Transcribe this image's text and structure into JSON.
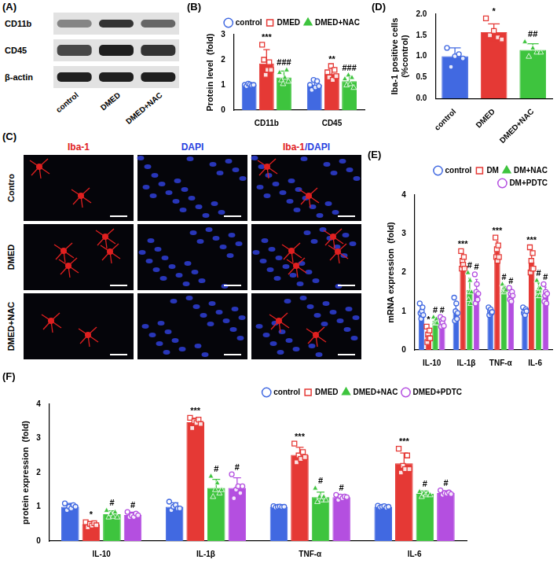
{
  "blot": {
    "panel": "(A)",
    "rows": [
      "CD11b",
      "CD45",
      "β-actin"
    ],
    "lanes": [
      "control",
      "DMED",
      "DMED+NAC"
    ]
  },
  "micrographs": {
    "panel": "(C)",
    "rows": [
      "Contro",
      "DMED",
      "DMED+NAC"
    ],
    "columns": [
      "Iba-1",
      "DAPI",
      "Iba-1/DAPI"
    ]
  },
  "chart_data": [
    {
      "type": "bar",
      "panel": "(B)",
      "y_label": "Protein level  (fold)",
      "categories": [
        "CD11b",
        "CD45"
      ],
      "ylim": [
        0,
        3
      ],
      "yticks": [
        0,
        1,
        2,
        3
      ],
      "grid": false,
      "legend": "top right",
      "series": [
        {
          "name": "control",
          "color": "#4169e1",
          "marker": "circle",
          "values": [
            1.0,
            1.0
          ],
          "errors": [
            0.06,
            0.18
          ],
          "points": [
            [
              1.0,
              0.95,
              1.05,
              1.02,
              0.98,
              1.0
            ],
            [
              1.0,
              0.8,
              1.2,
              0.9,
              1.15,
              0.95
            ]
          ],
          "annotations": [
            null,
            null
          ]
        },
        {
          "name": "DMED",
          "color": "#e53935",
          "marker": "square",
          "values": [
            1.85,
            1.45
          ],
          "errors": [
            0.55,
            0.25
          ],
          "points": [
            [
              2.6,
              2.0,
              1.4,
              1.6,
              1.9,
              1.6
            ],
            [
              1.5,
              1.3,
              1.75,
              1.2,
              1.6,
              1.35
            ]
          ],
          "annotations": [
            "***",
            "**"
          ]
        },
        {
          "name": "DMED+NAC",
          "color": "#3ec43e",
          "marker": "triangle",
          "values": [
            1.3,
            1.15
          ],
          "errors": [
            0.25,
            0.2
          ],
          "points": [
            [
              1.5,
              1.2,
              1.05,
              1.3,
              1.6,
              1.15
            ],
            [
              1.25,
              1.0,
              1.4,
              1.05,
              1.3,
              0.9
            ]
          ],
          "annotations": [
            "###",
            "###"
          ]
        }
      ]
    },
    {
      "type": "bar",
      "panel": "(D)",
      "y_label": [
        "Iba-1 positive cells",
        "(%control)"
      ],
      "categories": [
        "control",
        "DMED",
        "DMED+NAC"
      ],
      "ylim": [
        0,
        2
      ],
      "yticks": [
        {
          "value": 0,
          "label": "0.0"
        },
        {
          "value": 0.5,
          "label": "0.5"
        },
        {
          "value": 1,
          "label": "1.0"
        },
        {
          "value": 1.5,
          "label": "1.5"
        },
        {
          "value": 2,
          "label": "2.0"
        }
      ],
      "grid": false,
      "values": [
        1.0,
        1.57,
        1.15
      ],
      "errors": [
        0.2,
        0.2,
        0.15
      ],
      "colors": [
        "#4169e1",
        "#e53935",
        "#3ec43e"
      ],
      "markers": [
        "circle",
        "square",
        "triangle"
      ],
      "points": [
        [
          1.2,
          0.75,
          1.0,
          1.05,
          0.95
        ],
        [
          1.9,
          1.5,
          1.6,
          1.45,
          1.4
        ],
        [
          1.35,
          1.0,
          1.2,
          1.1,
          1.1
        ]
      ],
      "annotations": [
        null,
        "*",
        "##"
      ]
    },
    {
      "type": "bar",
      "panel": "(E)",
      "y_label": "mRNA expression  (fold)",
      "categories": [
        "IL-10",
        "IL-1β",
        "TNF-α",
        "IL-6"
      ],
      "ylim": [
        0,
        4
      ],
      "yticks": [
        0,
        1,
        2,
        3,
        4
      ],
      "grid": false,
      "legend": "top right",
      "series": [
        {
          "name": "control",
          "color": "#4169e1",
          "marker": "circle",
          "values": [
            1.0,
            1.0,
            1.0,
            1.0
          ],
          "errors": [
            0.15,
            0.25,
            0.1,
            0.08
          ],
          "points": [
            [
              1.2,
              0.95,
              0.8,
              1.0,
              1.1,
              0.9
            ],
            [
              1.35,
              0.75,
              1.0,
              1.2,
              0.8,
              0.95
            ],
            [
              1.1,
              0.9,
              1.0,
              1.05,
              0.95,
              0.98
            ],
            [
              1.1,
              0.95,
              1.0,
              0.9,
              1.05,
              1.0
            ]
          ],
          "annotations": [
            null,
            null,
            null,
            null
          ]
        },
        {
          "name": "DM",
          "color": "#e53935",
          "marker": "square",
          "values": [
            0.38,
            2.28,
            2.55,
            2.27
          ],
          "errors": [
            0.15,
            0.2,
            0.25,
            0.28
          ],
          "points": [
            [
              0.6,
              0.2,
              0.4,
              0.3,
              0.5,
              0.3
            ],
            [
              2.55,
              2.1,
              2.3,
              2.2,
              2.4,
              2.1
            ],
            [
              2.9,
              2.4,
              2.6,
              2.3,
              2.7,
              2.4
            ],
            [
              2.65,
              2.0,
              2.3,
              2.1,
              2.5,
              2.1
            ]
          ],
          "annotations": [
            "*",
            "***",
            "***",
            "***"
          ]
        },
        {
          "name": "DM+NAC",
          "color": "#3ec43e",
          "marker": "triangle",
          "values": [
            0.75,
            1.55,
            1.57,
            1.55
          ],
          "errors": [
            0.08,
            0.3,
            0.1,
            0.18
          ],
          "points": [
            [
              0.85,
              0.7,
              0.75,
              0.7,
              0.8,
              0.7
            ],
            [
              2.0,
              1.3,
              1.5,
              1.8,
              1.2,
              1.5
            ],
            [
              1.7,
              1.5,
              1.6,
              1.5,
              1.6,
              1.55
            ],
            [
              1.8,
              1.4,
              1.5,
              1.6,
              1.4,
              1.6
            ]
          ],
          "annotations": [
            "#",
            "#",
            "#",
            "#"
          ]
        },
        {
          "name": "DM+PDTC",
          "color": "#b44fe0",
          "marker": "circle",
          "values": [
            0.72,
            1.52,
            1.42,
            1.42
          ],
          "errors": [
            0.1,
            0.3,
            0.15,
            0.2
          ],
          "points": [
            [
              0.85,
              0.6,
              0.75,
              0.7,
              0.8,
              0.62
            ],
            [
              1.95,
              1.2,
              1.5,
              1.7,
              1.3,
              1.45
            ],
            [
              1.6,
              1.3,
              1.45,
              1.25,
              1.5,
              1.4
            ],
            [
              1.7,
              1.25,
              1.4,
              1.5,
              1.2,
              1.45
            ]
          ],
          "annotations": [
            "#",
            "#",
            "#",
            "#"
          ]
        }
      ]
    },
    {
      "type": "bar",
      "panel": "(F)",
      "y_label": "protein expression  (fold)",
      "categories": [
        "IL-10",
        "IL-1β",
        "TNF-α",
        "IL-6"
      ],
      "ylim": [
        0,
        4
      ],
      "yticks": [
        0,
        1,
        2,
        3,
        4
      ],
      "grid": false,
      "legend": "top right",
      "series": [
        {
          "name": "control",
          "color": "#4169e1",
          "marker": "circle",
          "values": [
            1.0,
            1.0,
            1.0,
            1.0
          ],
          "errors": [
            0.1,
            0.12,
            0.03,
            0.03
          ],
          "points": [
            [
              1.1,
              0.9,
              1.0,
              0.95,
              1.05,
              1.0
            ],
            [
              1.15,
              0.9,
              1.0,
              1.05,
              0.95,
              0.95
            ],
            [
              1.02,
              0.98,
              1.0,
              1.01,
              0.99,
              1.0
            ],
            [
              1.03,
              0.98,
              1.0,
              1.02,
              0.97,
              1.0
            ]
          ],
          "annotations": [
            null,
            null,
            null,
            null
          ]
        },
        {
          "name": "DMED",
          "color": "#e53935",
          "marker": "square",
          "values": [
            0.48,
            3.47,
            2.52,
            2.27
          ],
          "errors": [
            0.08,
            0.12,
            0.22,
            0.3
          ],
          "points": [
            [
              0.55,
              0.4,
              0.5,
              0.45,
              0.52,
              0.46
            ],
            [
              3.6,
              3.3,
              3.5,
              3.45,
              3.55,
              3.42
            ],
            [
              2.85,
              2.3,
              2.5,
              2.4,
              2.6,
              2.45
            ],
            [
              2.7,
              2.0,
              2.2,
              2.1,
              2.5,
              2.1
            ]
          ],
          "annotations": [
            "*",
            "***",
            "***",
            "***"
          ]
        },
        {
          "name": "DMED+NAC",
          "color": "#3ec43e",
          "marker": "triangle",
          "values": [
            0.78,
            1.55,
            1.28,
            1.38
          ],
          "errors": [
            0.1,
            0.25,
            0.15,
            0.08
          ],
          "points": [
            [
              0.9,
              0.7,
              0.8,
              0.72,
              0.85,
              0.7
            ],
            [
              1.9,
              1.3,
              1.5,
              1.7,
              1.4,
              1.5
            ],
            [
              1.55,
              1.15,
              1.3,
              1.2,
              1.3,
              1.2
            ],
            [
              1.45,
              1.3,
              1.4,
              1.35,
              1.4,
              1.35
            ]
          ],
          "annotations": [
            "#",
            "#",
            "#",
            "#"
          ]
        },
        {
          "name": "DMED+PDTC",
          "color": "#b44fe0",
          "marker": "circle",
          "values": [
            0.76,
            1.55,
            1.28,
            1.4
          ],
          "errors": [
            0.08,
            0.3,
            0.07,
            0.07
          ],
          "points": [
            [
              0.85,
              0.7,
              0.75,
              0.7,
              0.8,
              0.75
            ],
            [
              1.95,
              1.25,
              1.5,
              1.6,
              1.4,
              1.6
            ],
            [
              1.35,
              1.2,
              1.3,
              1.25,
              1.3,
              1.28
            ],
            [
              1.48,
              1.35,
              1.4,
              1.38,
              1.42,
              1.37
            ]
          ],
          "annotations": [
            "#",
            "#",
            "#",
            "#"
          ]
        }
      ]
    }
  ]
}
